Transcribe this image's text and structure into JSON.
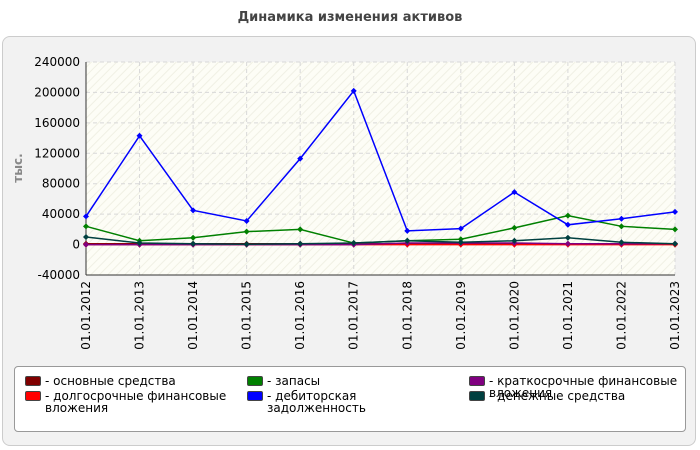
{
  "chart_data": {
    "type": "line",
    "title": "Динамика изменения активов",
    "y_label": "тыс.",
    "categories": [
      "01.01.2012",
      "01.01.2013",
      "01.01.2014",
      "01.01.2015",
      "01.01.2016",
      "01.01.2017",
      "01.01.2018",
      "01.01.2019",
      "01.01.2020",
      "01.01.2021",
      "01.01.2022",
      "01.01.2023"
    ],
    "series": [
      {
        "name": "- основные средства",
        "color": "#800000",
        "values": [
          1000,
          1000,
          1000,
          1000,
          1000,
          1000,
          1000,
          1000,
          1000,
          1000,
          1000,
          1000
        ]
      },
      {
        "name": "- долгосрочные финансовые вложения",
        "color": "#ff0000",
        "values": [
          0,
          0,
          0,
          0,
          0,
          0,
          0,
          0,
          0,
          0,
          0,
          0
        ]
      },
      {
        "name": "- запасы",
        "color": "#008000",
        "values": [
          24000,
          5000,
          9000,
          17000,
          20000,
          2000,
          5000,
          7000,
          22000,
          38000,
          24000,
          20000
        ]
      },
      {
        "name": "- дебиторская задолженность",
        "color": "#0000ff",
        "values": [
          37000,
          143000,
          45000,
          31000,
          113000,
          202000,
          18000,
          21000,
          69000,
          26000,
          34000,
          43000
        ]
      },
      {
        "name": "- краткосрочные финансовые вложения",
        "color": "#800080",
        "values": [
          0,
          0,
          0,
          0,
          0,
          0,
          2000,
          2000,
          2000,
          1000,
          1000,
          1000
        ]
      },
      {
        "name": "- денежные средства",
        "color": "#004040",
        "values": [
          10000,
          2000,
          1000,
          500,
          1000,
          2000,
          5000,
          3000,
          5000,
          9000,
          3000,
          1000
        ]
      }
    ],
    "ylim": [
      -40000,
      240000
    ],
    "yticks": [
      -40000,
      0,
      40000,
      80000,
      120000,
      160000,
      200000,
      240000
    ],
    "grid": true
  }
}
